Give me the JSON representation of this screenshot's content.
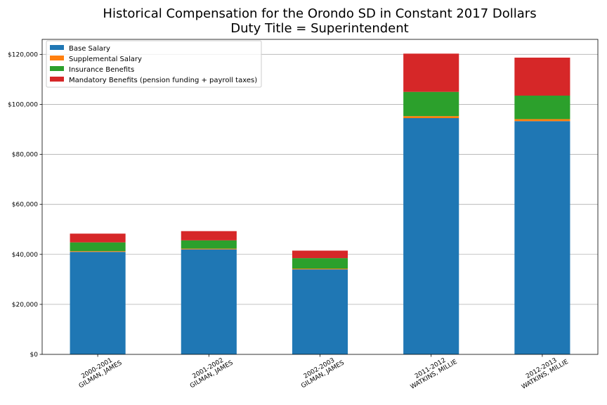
{
  "chart_data": {
    "type": "bar",
    "stacked": true,
    "title": "Historical Compensation for the Orondo SD in Constant 2017 Dollars",
    "subtitle": "Duty Title = Superintendent",
    "xlabel": "",
    "ylabel": "",
    "categories": [
      [
        "2000-2001",
        "GILMAN, JAMES"
      ],
      [
        "2001-2002",
        "GILMAN, JAMES"
      ],
      [
        "2002-2003",
        "GILMAN, JAMES"
      ],
      [
        "2011-2012",
        "WATKINS, MILLIE"
      ],
      [
        "2012-2013",
        "WATKINS, MILLIE"
      ]
    ],
    "series": [
      {
        "name": "Base Salary",
        "color": "#1f77b4",
        "values": [
          41000,
          42000,
          34000,
          94500,
          93300
        ]
      },
      {
        "name": "Supplemental Salary",
        "color": "#ff7f0e",
        "values": [
          300,
          300,
          300,
          800,
          800
        ]
      },
      {
        "name": "Insurance Benefits",
        "color": "#2ca02c",
        "values": [
          3500,
          3300,
          4200,
          9700,
          9400
        ]
      },
      {
        "name": "Mandatory Benefits (pension funding + payroll taxes)",
        "color": "#d62728",
        "values": [
          3500,
          3700,
          3000,
          15300,
          15200
        ]
      }
    ],
    "ylim": [
      0,
      126000
    ],
    "yticks": [
      0,
      20000,
      40000,
      60000,
      80000,
      100000,
      120000
    ],
    "ytick_labels": [
      "$0",
      "$20,000",
      "$40,000",
      "$60,000",
      "$80,000",
      "$100,000",
      "$120,000"
    ],
    "grid": "horizontal",
    "legend_position": "top-left"
  }
}
